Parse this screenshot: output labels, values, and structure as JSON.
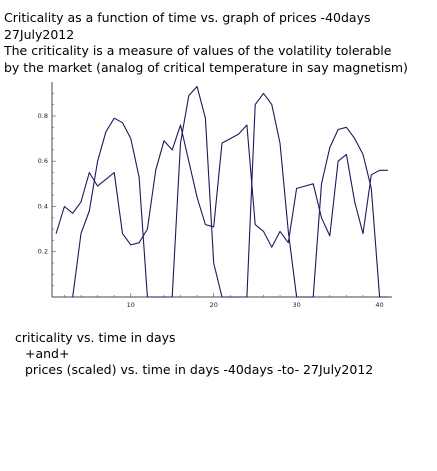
{
  "header": {
    "line1": "Criticality as a function of time vs.  graph of    prices -40days",
    "line2": "27July2012",
    "line3": "The criticality is a measure of values of the volatility tolerable",
    "line4": "by the market (analog of critical temperature in say magnetism)"
  },
  "caption": {
    "line1": "criticality vs. time in days",
    "line2": "+and+",
    "line3": "prices (scaled) vs. time in days -40days -to- 27July2012"
  },
  "chart_data": {
    "type": "line",
    "title": "",
    "xlabel": "",
    "ylabel": "",
    "xlim": [
      0.5,
      41.5
    ],
    "ylim": [
      0,
      0.95
    ],
    "xticks": [
      10,
      20,
      30,
      40
    ],
    "yticks": [
      0.2,
      0.4,
      0.6,
      0.8
    ],
    "grid": false,
    "series": [
      {
        "color": "#1a1a5e",
        "x": [
          1,
          2,
          3,
          4,
          5,
          6,
          7,
          8,
          9,
          10,
          11,
          12,
          13,
          14,
          15,
          16,
          17,
          18,
          19,
          20,
          21,
          22,
          23,
          24,
          25,
          26,
          27,
          28,
          29,
          30,
          31,
          32,
          33,
          34,
          35,
          36,
          37,
          38,
          39,
          40,
          41
        ],
        "values": [
          0.28,
          0.4,
          0.37,
          0.42,
          0.55,
          0.49,
          0.52,
          0.55,
          0.28,
          0.23,
          0.24,
          0.3,
          0.56,
          0.69,
          0.65,
          0.76,
          0.6,
          0.44,
          0.32,
          0.31,
          0.68,
          0.7,
          0.72,
          0.76,
          0.32,
          0.29,
          0.22,
          0.29,
          0.24,
          0.48,
          0.49,
          0.5,
          0.35,
          0.27,
          0.6,
          0.63,
          0.42,
          0.28,
          0.54,
          0.56,
          0.56
        ]
      },
      {
        "color": "#1a1a5e",
        "x": [
          3,
          4,
          5,
          6,
          7,
          8,
          9,
          10,
          11,
          12,
          13,
          14,
          15,
          16,
          17,
          18,
          19,
          20,
          21,
          22,
          23,
          24,
          25,
          26,
          27,
          28,
          29,
          30,
          31,
          32,
          33,
          34,
          35,
          36,
          37,
          38,
          39,
          40,
          41
        ],
        "values": [
          0.0,
          0.28,
          0.38,
          0.6,
          0.73,
          0.79,
          0.77,
          0.7,
          0.53,
          0.0,
          0.0,
          0.0,
          0.0,
          0.68,
          0.89,
          0.93,
          0.79,
          0.15,
          0.0,
          0.0,
          0.0,
          0.0,
          0.85,
          0.9,
          0.85,
          0.68,
          0.29,
          0.0,
          0.0,
          0.0,
          0.5,
          0.66,
          0.74,
          0.75,
          0.7,
          0.63,
          0.48,
          0.0,
          0.0
        ]
      }
    ]
  }
}
